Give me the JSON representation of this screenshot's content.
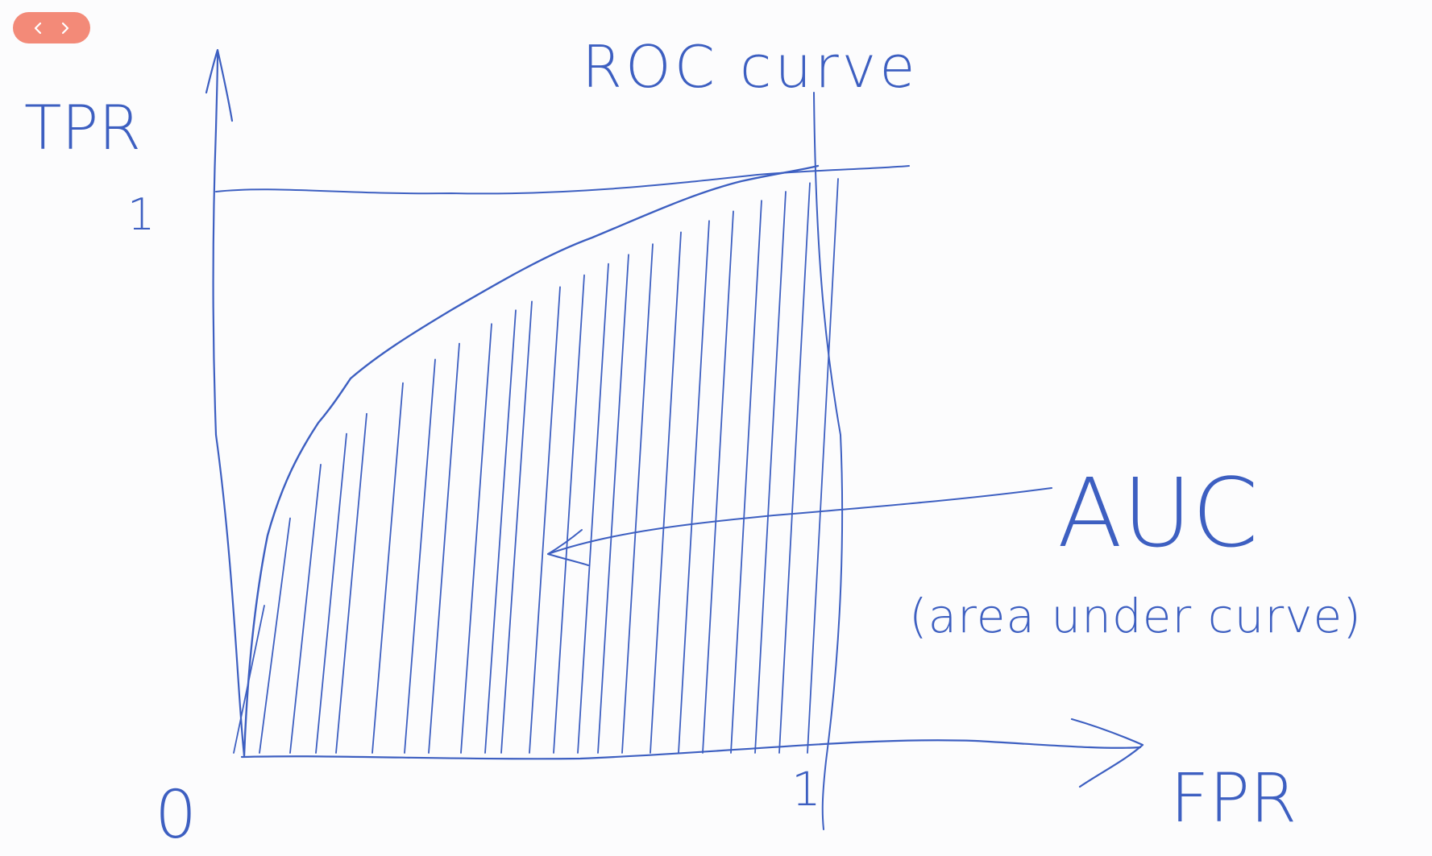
{
  "viewer": {
    "prev_label": "previous",
    "next_label": "next",
    "accent": "#f38a78"
  },
  "drawing": {
    "ink": "#3d5fc1",
    "title": "ROC curve",
    "y_axis_label": "TPR",
    "x_axis_label": "FPR",
    "y_tick_one": "1",
    "x_tick_one": "1",
    "origin_label": "0",
    "annotation": {
      "label": "AUC",
      "sublabel": "(area under curve)"
    }
  }
}
